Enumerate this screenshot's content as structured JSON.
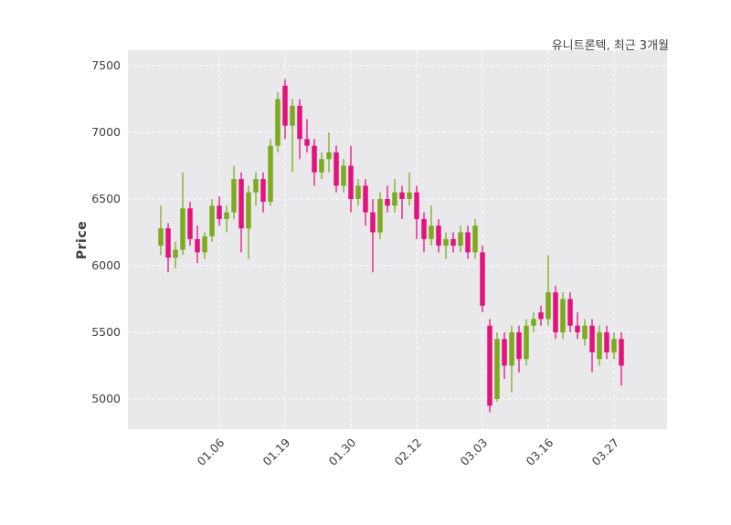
{
  "chart_data": {
    "type": "candlestick",
    "title": "유니트론텍, 최근 3개월",
    "ylabel": "Price",
    "yticks": [
      5000,
      5500,
      6000,
      6500,
      7000,
      7500
    ],
    "ylim": [
      4780,
      7615
    ],
    "xtick_labels": [
      "01.06",
      "01.19",
      "01.30",
      "02.12",
      "03.03",
      "03.16",
      "03.27"
    ],
    "xtick_indices": [
      8,
      17,
      26,
      35,
      44,
      53,
      62
    ],
    "grid": true,
    "legend": "none",
    "colors": {
      "up": "#7cab1e",
      "down": "#e4127f",
      "plot_bg": "#e9e9ec",
      "grid": "#ffffff",
      "text": "#3d3d3d"
    },
    "candles_format": [
      "open",
      "high",
      "low",
      "close"
    ],
    "candles": [
      [
        6150,
        6450,
        6080,
        6280
      ],
      [
        6280,
        6320,
        5950,
        6060
      ],
      [
        6060,
        6180,
        5980,
        6120
      ],
      [
        6120,
        6700,
        6080,
        6430
      ],
      [
        6430,
        6480,
        6150,
        6200
      ],
      [
        6200,
        6300,
        6020,
        6100
      ],
      [
        6100,
        6250,
        6050,
        6220
      ],
      [
        6220,
        6500,
        6180,
        6450
      ],
      [
        6450,
        6520,
        6300,
        6350
      ],
      [
        6350,
        6450,
        6250,
        6400
      ],
      [
        6400,
        6750,
        6350,
        6650
      ],
      [
        6650,
        6700,
        6100,
        6280
      ],
      [
        6280,
        6600,
        6050,
        6550
      ],
      [
        6550,
        6700,
        6450,
        6650
      ],
      [
        6650,
        6700,
        6400,
        6480
      ],
      [
        6480,
        6950,
        6450,
        6900
      ],
      [
        6900,
        7300,
        6850,
        7250
      ],
      [
        7350,
        7400,
        6950,
        7050
      ],
      [
        7050,
        7250,
        6700,
        7200
      ],
      [
        7200,
        7250,
        6800,
        6950
      ],
      [
        6950,
        7100,
        6850,
        6900
      ],
      [
        6900,
        6950,
        6600,
        6700
      ],
      [
        6700,
        6850,
        6650,
        6800
      ],
      [
        6800,
        7000,
        6700,
        6850
      ],
      [
        6850,
        6900,
        6550,
        6600
      ],
      [
        6600,
        6800,
        6550,
        6750
      ],
      [
        6750,
        6900,
        6400,
        6500
      ],
      [
        6500,
        6650,
        6450,
        6600
      ],
      [
        6600,
        6650,
        6300,
        6400
      ],
      [
        6400,
        6500,
        5950,
        6250
      ],
      [
        6250,
        6550,
        6200,
        6500
      ],
      [
        6500,
        6600,
        6400,
        6450
      ],
      [
        6450,
        6650,
        6400,
        6550
      ],
      [
        6550,
        6600,
        6350,
        6500
      ],
      [
        6500,
        6700,
        6450,
        6550
      ],
      [
        6550,
        6600,
        6200,
        6350
      ],
      [
        6350,
        6400,
        6100,
        6200
      ],
      [
        6200,
        6450,
        6150,
        6300
      ],
      [
        6300,
        6350,
        6100,
        6150
      ],
      [
        6150,
        6250,
        6050,
        6200
      ],
      [
        6200,
        6250,
        6100,
        6150
      ],
      [
        6150,
        6300,
        6100,
        6250
      ],
      [
        6250,
        6300,
        6050,
        6100
      ],
      [
        6100,
        6350,
        6050,
        6300
      ],
      [
        6100,
        6150,
        5650,
        5700
      ],
      [
        5550,
        5600,
        4900,
        4950
      ],
      [
        5000,
        5500,
        4980,
        5450
      ],
      [
        5450,
        5500,
        5150,
        5250
      ],
      [
        5250,
        5550,
        5050,
        5500
      ],
      [
        5500,
        5550,
        5200,
        5300
      ],
      [
        5300,
        5600,
        5250,
        5550
      ],
      [
        5550,
        5650,
        5500,
        5600
      ],
      [
        5650,
        5700,
        5550,
        5600
      ],
      [
        5600,
        6080,
        5550,
        5800
      ],
      [
        5800,
        5850,
        5450,
        5500
      ],
      [
        5500,
        5800,
        5450,
        5750
      ],
      [
        5750,
        5800,
        5500,
        5550
      ],
      [
        5550,
        5650,
        5450,
        5500
      ],
      [
        5450,
        5600,
        5400,
        5550
      ],
      [
        5550,
        5600,
        5200,
        5350
      ],
      [
        5300,
        5550,
        5250,
        5500
      ],
      [
        5500,
        5550,
        5300,
        5350
      ],
      [
        5350,
        5500,
        5300,
        5450
      ],
      [
        5450,
        5500,
        5100,
        5250
      ]
    ]
  }
}
